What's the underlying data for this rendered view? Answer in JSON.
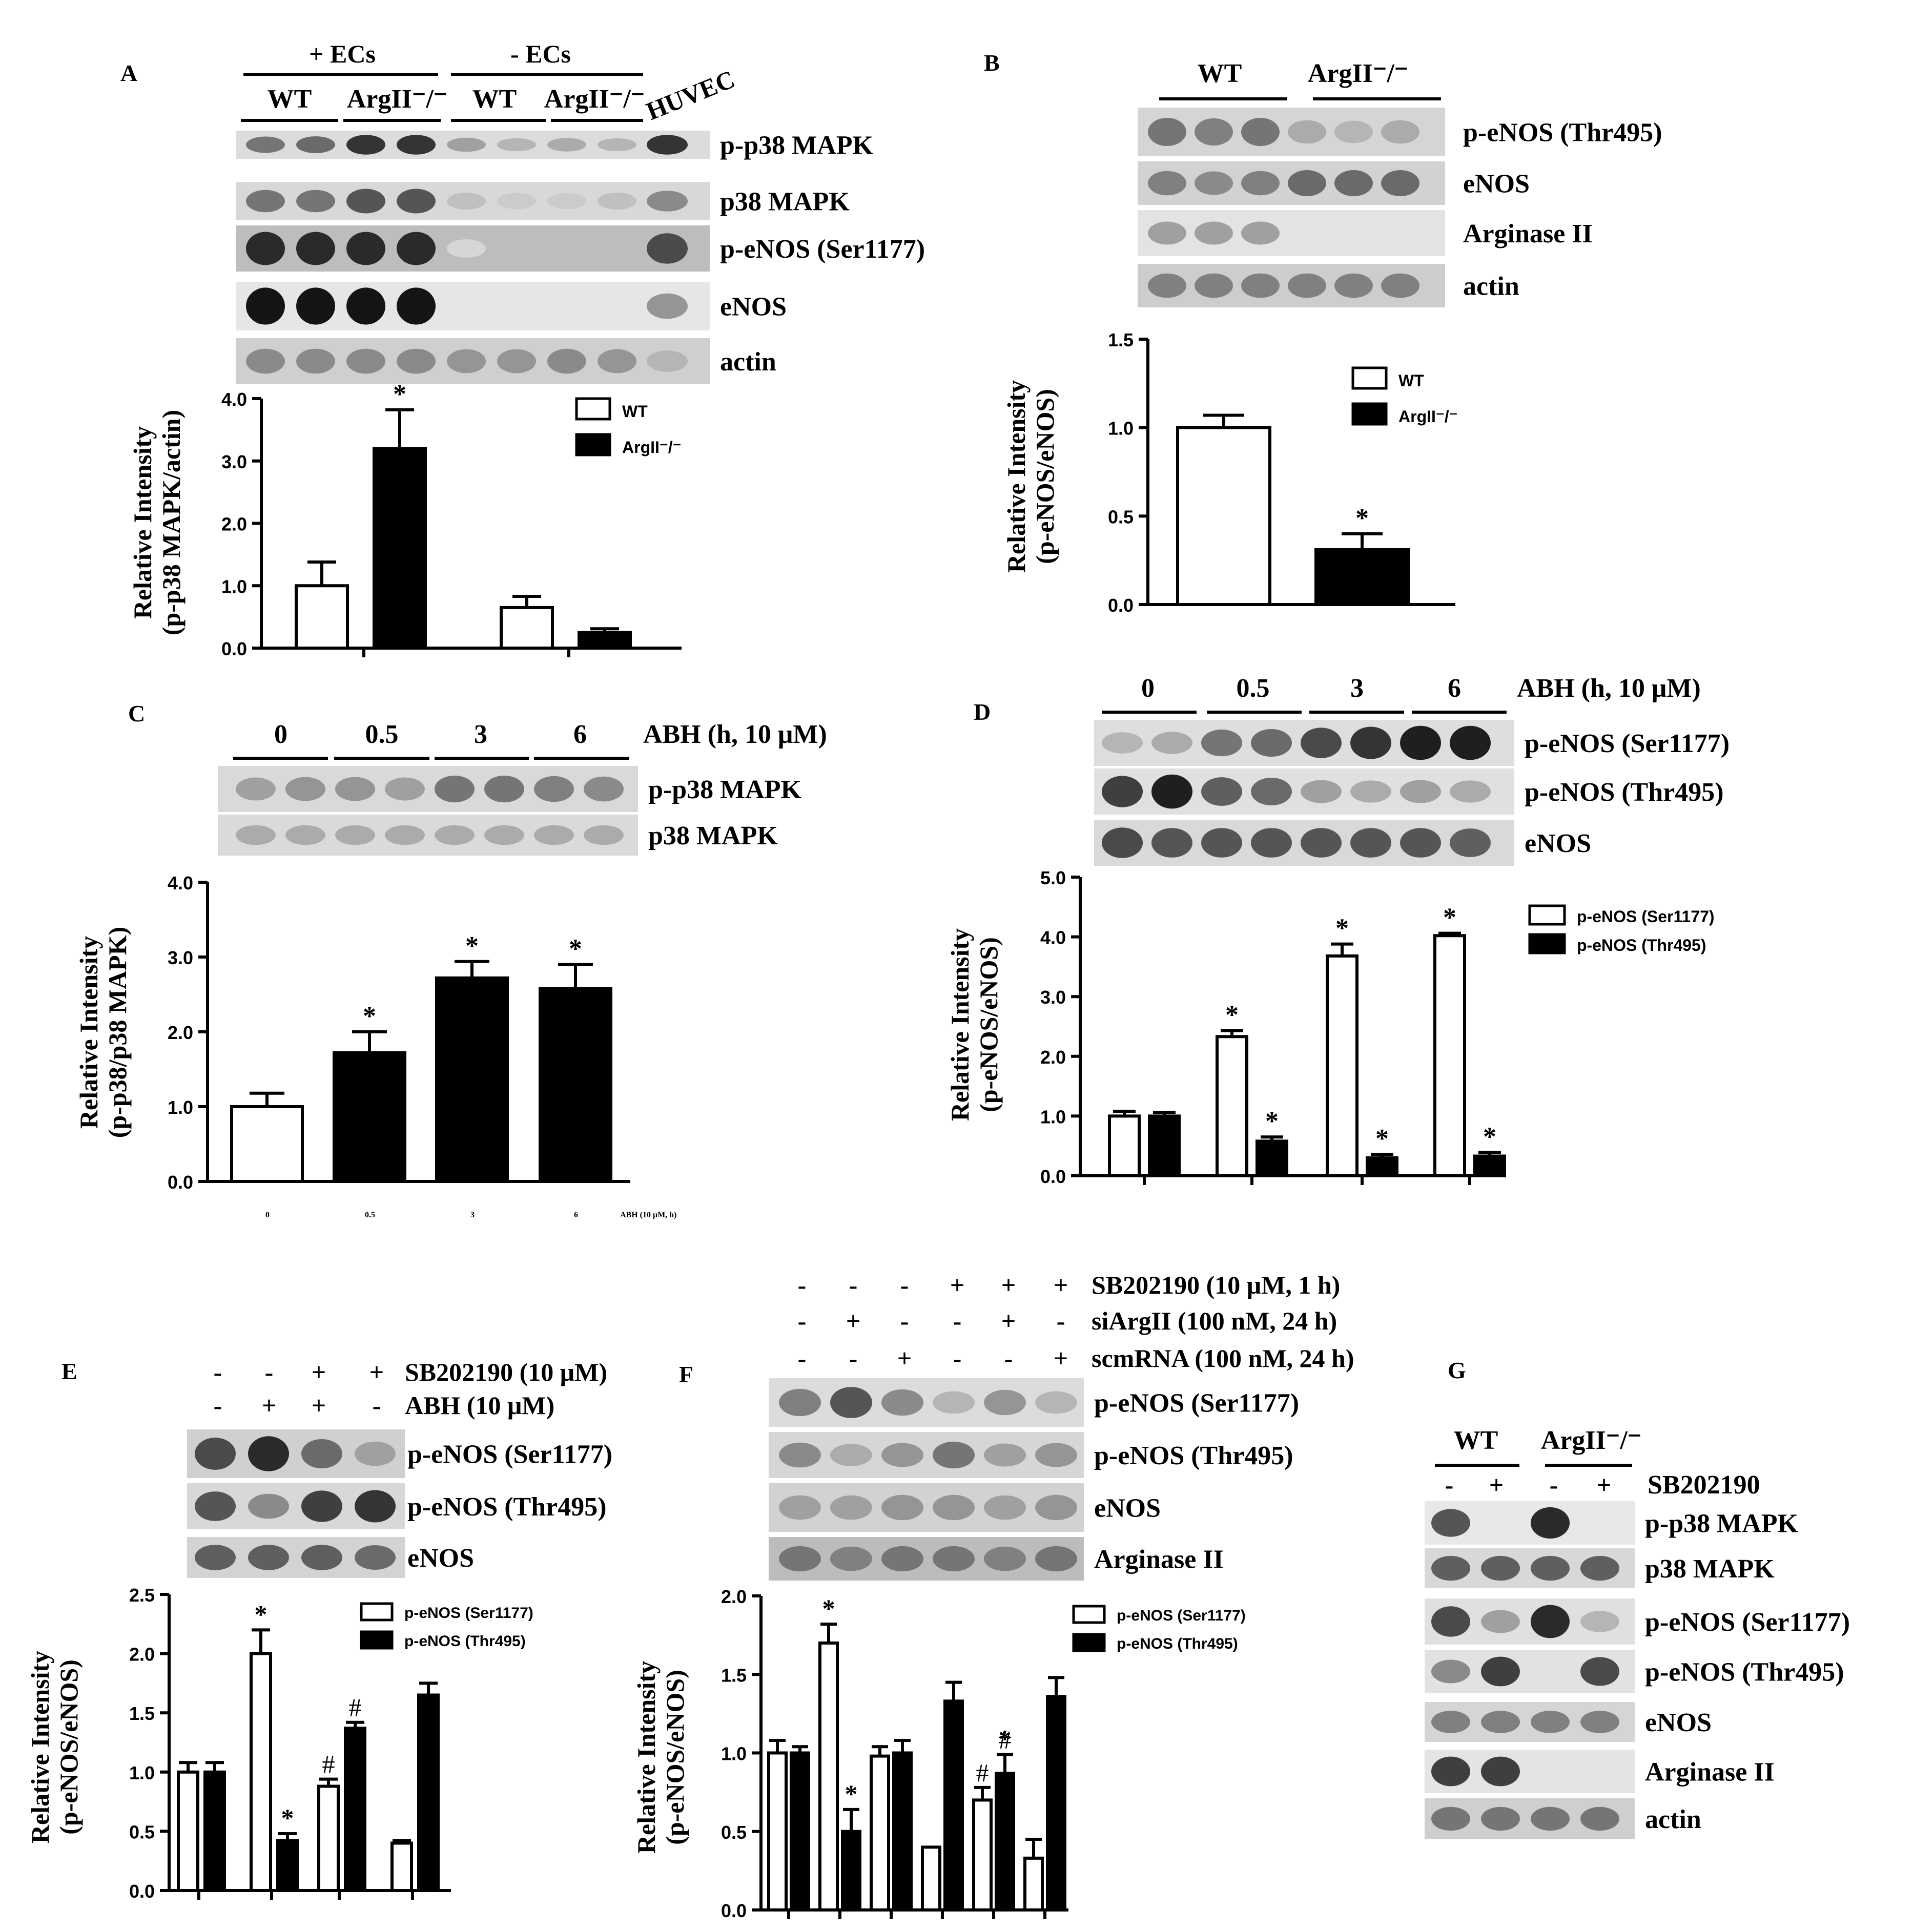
{
  "panels": {
    "A": {
      "letter": "A",
      "groups": [
        "+ ECs",
        "- ECs"
      ],
      "genotypes": [
        "WT",
        "ArgII⁻/⁻",
        "WT",
        "ArgII⁻/⁻"
      ],
      "extra": "HUVEC",
      "blots": [
        "p-p38 MAPK",
        "p38 MAPK",
        "p-eNOS (Ser1177)",
        "eNOS",
        "actin"
      ]
    },
    "B": {
      "letter": "B",
      "genotypes": [
        "WT",
        "ArgII⁻/⁻"
      ],
      "blots": [
        "p-eNOS (Thr495)",
        "eNOS",
        "Arginase II",
        "actin"
      ]
    },
    "C": {
      "letter": "C",
      "times": [
        "0",
        "0.5",
        "3",
        "6"
      ],
      "condition": "ABH (h, 10 μM)",
      "blots": [
        "p-p38 MAPK",
        "p38 MAPK"
      ]
    },
    "D": {
      "letter": "D",
      "times": [
        "0",
        "0.5",
        "3",
        "6"
      ],
      "condition": "ABH (h, 10 μM)",
      "blots": [
        "p-eNOS (Ser1177)",
        "p-eNOS (Thr495)",
        "eNOS"
      ]
    },
    "E": {
      "letter": "E",
      "treatments": [
        {
          "name": "SB202190 (10 μM)",
          "signs": [
            "-",
            "-",
            "+",
            "+"
          ]
        },
        {
          "name": "ABH (10 μM)",
          "signs": [
            "-",
            "+",
            "+",
            "-"
          ]
        }
      ],
      "blots": [
        "p-eNOS (Ser1177)",
        "p-eNOS (Thr495)",
        "eNOS"
      ]
    },
    "F": {
      "letter": "F",
      "treatments": [
        {
          "name": "SB202190 (10 μM, 1 h)",
          "signs": [
            "-",
            "-",
            "-",
            "+",
            "+",
            "+"
          ]
        },
        {
          "name": "siArgII (100 nM, 24 h)",
          "signs": [
            "-",
            "+",
            "-",
            "-",
            "+",
            "-"
          ]
        },
        {
          "name": "scmRNA (100 nM, 24 h)",
          "signs": [
            "-",
            "-",
            "+",
            "-",
            "-",
            "+"
          ]
        }
      ],
      "blots": [
        "p-eNOS (Ser1177)",
        "p-eNOS (Thr495)",
        "eNOS",
        "Arginase II"
      ]
    },
    "G": {
      "letter": "G",
      "genotypes": [
        "WT",
        "ArgII⁻/⁻"
      ],
      "treatment": "SB202190",
      "signs": [
        "-",
        "+",
        "-",
        "+"
      ],
      "blots": [
        "p-p38 MAPK",
        "p38 MAPK",
        "p-eNOS (Ser1177)",
        "p-eNOS (Thr495)",
        "eNOS",
        "Arginase II",
        "actin"
      ]
    }
  },
  "chart_data": [
    {
      "panel": "A",
      "type": "bar",
      "ylabel": [
        "Relative Intensity",
        "(p-p38 MAPK/actin)"
      ],
      "ylim": [
        0,
        4
      ],
      "yticks": [
        "0.0",
        "1.0",
        "2.0",
        "3.0",
        "4.0"
      ],
      "legend": [
        "WT",
        "ArgII⁻/⁻"
      ],
      "series": [
        {
          "name": "WT",
          "values": [
            1.0,
            0.65
          ],
          "errors": [
            0.38,
            0.18
          ],
          "star": [
            false,
            false
          ],
          "hash": [
            false,
            false
          ],
          "fill": "#ffffff"
        },
        {
          "name": "ArgII⁻/⁻",
          "values": [
            3.2,
            0.25
          ],
          "errors": [
            0.62,
            0.06
          ],
          "star": [
            true,
            false
          ],
          "hash": [
            false,
            false
          ],
          "fill": "#000000"
        }
      ]
    },
    {
      "panel": "B",
      "type": "bar",
      "ylabel": [
        "Relative Intensity",
        "(p-eNOS/eNOS)"
      ],
      "ylim": [
        0,
        1.5
      ],
      "yticks": [
        "0.0",
        "0.5",
        "1.0",
        "1.5"
      ],
      "legend": [
        "WT",
        "ArgII⁻/⁻"
      ],
      "series": [
        {
          "name": "WT",
          "values": [
            1.0
          ],
          "errors": [
            0.07
          ],
          "star": [
            false
          ],
          "hash": [
            false
          ],
          "fill": "#ffffff"
        },
        {
          "name": "ArgII⁻/⁻",
          "values": [
            0.31
          ],
          "errors": [
            0.09
          ],
          "star": [
            true
          ],
          "hash": [
            false
          ],
          "fill": "#000000"
        }
      ]
    },
    {
      "panel": "C",
      "type": "bar",
      "ylabel": [
        "Relative Intensity",
        "(p-p38/p38 MAPK)"
      ],
      "ylim": [
        0,
        4
      ],
      "yticks": [
        "0.0",
        "1.0",
        "2.0",
        "3.0",
        "4.0"
      ],
      "xlabel": "ABH (10 μM, h)",
      "categories": [
        "0",
        "0.5",
        "3",
        "6"
      ],
      "fills": [
        "#ffffff",
        "#000000",
        "#000000",
        "#000000"
      ],
      "values": [
        1.0,
        1.72,
        2.72,
        2.58
      ],
      "errors": [
        0.18,
        0.28,
        0.22,
        0.32
      ],
      "star": [
        false,
        true,
        true,
        true
      ]
    },
    {
      "panel": "D",
      "type": "bar",
      "ylabel": [
        "Relative Intensity",
        "(p-eNOS/eNOS)"
      ],
      "ylim": [
        0,
        5
      ],
      "yticks": [
        "0.0",
        "1.0",
        "2.0",
        "3.0",
        "4.0",
        "5.0"
      ],
      "legend": [
        "p-eNOS (Ser1177)",
        "p-eNOS (Thr495)"
      ],
      "series": [
        {
          "name": "p-eNOS (Ser1177)",
          "values": [
            1.0,
            2.33,
            3.68,
            4.02
          ],
          "errors": [
            0.08,
            0.1,
            0.2,
            0.04
          ],
          "star": [
            false,
            true,
            true,
            true
          ],
          "hash": [
            false,
            false,
            false,
            false
          ],
          "fill": "#ffffff"
        },
        {
          "name": "p-eNOS (Thr495)",
          "values": [
            1.0,
            0.58,
            0.3,
            0.33
          ],
          "errors": [
            0.06,
            0.07,
            0.06,
            0.06
          ],
          "star": [
            false,
            true,
            true,
            true
          ],
          "hash": [
            false,
            false,
            false,
            false
          ],
          "fill": "#000000"
        }
      ]
    },
    {
      "panel": "E",
      "type": "bar",
      "ylabel": [
        "Relative Intensity",
        "(p-eNOS/eNOS)"
      ],
      "ylim": [
        0,
        2.5
      ],
      "yticks": [
        "0.0",
        "0.5",
        "1.0",
        "1.5",
        "2.0",
        "2.5"
      ],
      "legend": [
        "p-eNOS (Ser1177)",
        "p-eNOS (Thr495)"
      ],
      "series": [
        {
          "name": "p-eNOS (Ser1177)",
          "values": [
            1.0,
            2.0,
            0.88,
            0.4
          ],
          "errors": [
            0.08,
            0.2,
            0.06,
            0.02
          ],
          "star": [
            false,
            true,
            false,
            false
          ],
          "hash": [
            false,
            false,
            true,
            false
          ],
          "fill": "#ffffff"
        },
        {
          "name": "p-eNOS (Thr495)",
          "values": [
            1.0,
            0.42,
            1.37,
            1.65
          ],
          "errors": [
            0.08,
            0.06,
            0.05,
            0.1
          ],
          "star": [
            false,
            true,
            false,
            false
          ],
          "hash": [
            false,
            false,
            true,
            false
          ],
          "fill": "#000000"
        }
      ]
    },
    {
      "panel": "F",
      "type": "bar",
      "ylabel": [
        "Relative Intensity",
        "(p-eNOS/eNOS)"
      ],
      "ylim": [
        0,
        2
      ],
      "yticks": [
        "0.0",
        "0.5",
        "1.0",
        "1.5",
        "2.0"
      ],
      "legend": [
        "p-eNOS (Ser1177)",
        "p-eNOS (Thr495)"
      ],
      "series": [
        {
          "name": "p-eNOS (Ser1177)",
          "values": [
            1.0,
            1.7,
            0.98,
            0.4,
            0.7,
            0.33
          ],
          "errors": [
            0.08,
            0.12,
            0.06,
            0.0,
            0.08,
            0.12
          ],
          "star": [
            false,
            true,
            false,
            false,
            false,
            false
          ],
          "hash": [
            false,
            false,
            false,
            false,
            true,
            false
          ],
          "fill": "#ffffff"
        },
        {
          "name": "p-eNOS (Thr495)",
          "values": [
            1.0,
            0.5,
            1.0,
            1.33,
            0.87,
            1.36
          ],
          "errors": [
            0.04,
            0.14,
            0.08,
            0.12,
            0.12,
            0.12
          ],
          "star": [
            false,
            true,
            false,
            false,
            true,
            false
          ],
          "hash": [
            false,
            false,
            false,
            false,
            true,
            false
          ],
          "fill": "#000000"
        }
      ]
    }
  ]
}
